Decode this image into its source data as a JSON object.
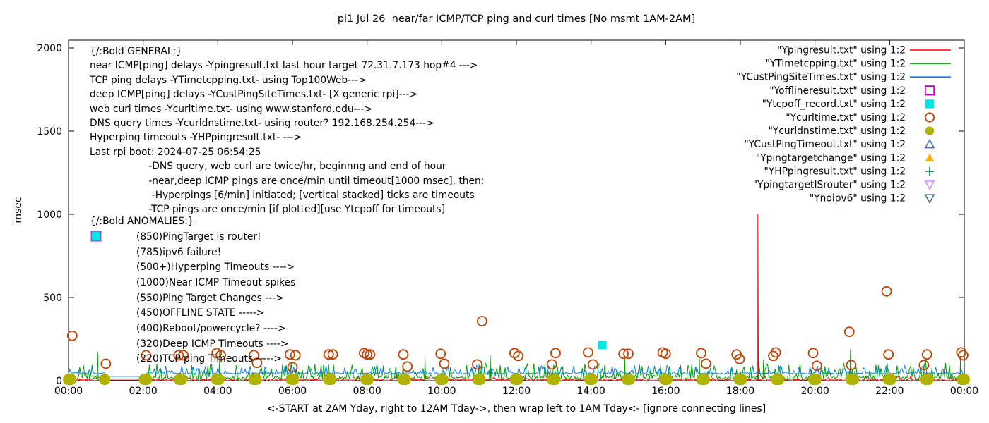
{
  "chart_data": {
    "type": "line",
    "title": "pi1 Jul 26  near/far ICMP/TCP ping and curl times [No msmt 1AM-2AM]",
    "ylabel": "msec",
    "xlabel": "<-START at 2AM Yday, right to 12AM Tday->, then wrap left to 1AM Tday<- [ignore connecting lines]",
    "ylim": [
      0,
      2050
    ],
    "yticks": [
      0,
      500,
      1000,
      1500,
      2000
    ],
    "x_hours": [
      0,
      24
    ],
    "xtick_labels": [
      "00:00",
      "02:00",
      "04:00",
      "06:00",
      "08:00",
      "10:00",
      "12:00",
      "14:00",
      "16:00",
      "18:00",
      "20:00",
      "22:00",
      "00:00"
    ],
    "grid": false,
    "legend_position": "top-right-inside",
    "measurement_gap_hours": [
      0.98,
      2.04
    ],
    "legend": [
      {
        "label": "\"Ypingresult.txt\" using 1:2",
        "color": "#ff0000",
        "sample": "line"
      },
      {
        "label": "\"YTimetcpping.txt\" using 1:2",
        "color": "#00a000",
        "sample": "line"
      },
      {
        "label": "\"YCustPingSiteTimes.txt\" using 1:2",
        "color": "#0080ff",
        "sample": "line"
      },
      {
        "label": "\"Yofflineresult.txt\" using 1:2",
        "color": "#c800c8",
        "sample": "open-square"
      },
      {
        "label": "\"Ytcpoff_record.txt\" using 1:2",
        "color": "#00e6e6",
        "sample": "filled-square"
      },
      {
        "label": "\"Ycurltime.txt\" using 1:2",
        "color": "#c04000",
        "sample": "open-circle"
      },
      {
        "label": "\"Ycurldnstime.txt\" using 1:2",
        "color": "#b0b400",
        "sample": "filled-circle"
      },
      {
        "label": "\"YCustPingTimeout.txt\" using 1:2",
        "color": "#4169e1",
        "sample": "open-triangle-up"
      },
      {
        "label": "\"Ypingtargetchange\" using 1:2",
        "color": "#ffaa00",
        "sample": "filled-triangle-up"
      },
      {
        "label": "\"YHPpingresult.txt\" using 1:2",
        "color": "#007850",
        "sample": "plus"
      },
      {
        "label": "\"YpingtargetISrouter\" using 1:2",
        "color": "#cc88ff",
        "sample": "open-triangle-down"
      },
      {
        "label": "\"Ynoipv6\" using 1:2",
        "color": "#3d6a80",
        "sample": "open-triangle-down"
      }
    ],
    "series": [
      {
        "name": "Ypingresult.txt",
        "color": "#ff0000",
        "kind": "noise-line",
        "seed": 11,
        "base": 3,
        "amp": 9,
        "spike_prob": 0.05,
        "spike_amp": 18,
        "gap_value": 4,
        "events": [
          {
            "x": 18.47,
            "y": 1000
          }
        ]
      },
      {
        "name": "YTimetcpping.txt",
        "color": "#00a000",
        "kind": "noise-line",
        "seed": 22,
        "base": 6,
        "amp": 22,
        "spike_prob": 0.3,
        "spike_amp": 80,
        "gap_value": 11,
        "events": [
          {
            "x": 0.78,
            "y": 175
          },
          {
            "x": 4.05,
            "y": 185
          },
          {
            "x": 9.55,
            "y": 140
          },
          {
            "x": 11.3,
            "y": 150
          },
          {
            "x": 14.9,
            "y": 150
          },
          {
            "x": 16.9,
            "y": 140
          },
          {
            "x": 18.62,
            "y": 128
          },
          {
            "x": 20.95,
            "y": 190
          },
          {
            "x": 23.9,
            "y": 150
          }
        ]
      },
      {
        "name": "YCustPingSiteTimes.txt",
        "color": "#0080ff",
        "kind": "noise-line",
        "seed": 33,
        "base": 40,
        "amp": 9,
        "spike_prob": 0.22,
        "spike_amp": 42,
        "gap_value": 26,
        "events": []
      },
      {
        "name": "Yofflineresult.txt",
        "color": "#c800c8",
        "kind": "points",
        "marker": "open-square",
        "size": 6.5,
        "points": []
      },
      {
        "name": "Ytcpoff_record.txt",
        "color": "#00e6e6",
        "kind": "points",
        "marker": "filled-square",
        "size": 6,
        "points": [
          [
            14.3,
            215
          ]
        ]
      },
      {
        "name": "Ycurltime.txt",
        "color": "#c04000",
        "kind": "points",
        "marker": "open-circle",
        "size": 6.5,
        "points": [
          [
            0.1,
            270
          ],
          [
            1.0,
            102
          ],
          [
            2.08,
            153
          ],
          [
            2.95,
            153
          ],
          [
            3.08,
            153
          ],
          [
            3.97,
            166
          ],
          [
            4.08,
            153
          ],
          [
            4.97,
            153
          ],
          [
            5.05,
            107
          ],
          [
            5.93,
            158
          ],
          [
            6.0,
            81
          ],
          [
            6.08,
            153
          ],
          [
            6.97,
            158
          ],
          [
            7.08,
            158
          ],
          [
            7.92,
            166
          ],
          [
            8.0,
            158
          ],
          [
            8.08,
            158
          ],
          [
            8.97,
            158
          ],
          [
            9.08,
            85
          ],
          [
            9.97,
            162
          ],
          [
            10.07,
            102
          ],
          [
            10.95,
            98
          ],
          [
            11.08,
            358
          ],
          [
            11.95,
            166
          ],
          [
            12.05,
            149
          ],
          [
            12.95,
            98
          ],
          [
            13.05,
            166
          ],
          [
            13.92,
            170
          ],
          [
            14.05,
            98
          ],
          [
            14.87,
            162
          ],
          [
            15.0,
            162
          ],
          [
            15.92,
            170
          ],
          [
            16.0,
            162
          ],
          [
            16.95,
            166
          ],
          [
            17.08,
            102
          ],
          [
            17.9,
            158
          ],
          [
            17.98,
            130
          ],
          [
            18.88,
            149
          ],
          [
            18.95,
            170
          ],
          [
            19.95,
            166
          ],
          [
            20.05,
            90
          ],
          [
            20.92,
            294
          ],
          [
            20.97,
            94
          ],
          [
            21.92,
            537
          ],
          [
            21.97,
            158
          ],
          [
            22.92,
            94
          ],
          [
            23.0,
            158
          ],
          [
            23.92,
            170
          ],
          [
            23.97,
            153
          ]
        ]
      },
      {
        "name": "Ycurldnstime.txt",
        "color": "#b0b400",
        "kind": "points",
        "marker": "filled-circle",
        "size": 8,
        "points": [
          [
            0.0,
            8
          ],
          [
            0.06,
            8
          ],
          [
            0.97,
            8
          ],
          [
            2.03,
            8
          ],
          [
            2.09,
            8
          ],
          [
            2.97,
            8
          ],
          [
            3.03,
            8
          ],
          [
            3.97,
            8
          ],
          [
            4.03,
            8
          ],
          [
            4.97,
            8
          ],
          [
            5.03,
            8
          ],
          [
            5.97,
            8
          ],
          [
            6.03,
            8
          ],
          [
            6.97,
            8
          ],
          [
            7.03,
            8
          ],
          [
            7.97,
            8
          ],
          [
            8.03,
            8
          ],
          [
            8.97,
            8
          ],
          [
            9.03,
            8
          ],
          [
            9.97,
            8
          ],
          [
            10.03,
            8
          ],
          [
            10.97,
            8
          ],
          [
            11.03,
            8
          ],
          [
            11.97,
            8
          ],
          [
            12.03,
            8
          ],
          [
            12.97,
            8
          ],
          [
            13.03,
            8
          ],
          [
            13.97,
            8
          ],
          [
            14.03,
            8
          ],
          [
            14.97,
            8
          ],
          [
            15.03,
            8
          ],
          [
            15.97,
            8
          ],
          [
            16.03,
            8
          ],
          [
            16.97,
            8
          ],
          [
            17.03,
            8
          ],
          [
            17.97,
            8
          ],
          [
            18.03,
            8
          ],
          [
            18.97,
            8
          ],
          [
            19.03,
            8
          ],
          [
            19.97,
            8
          ],
          [
            20.03,
            8
          ],
          [
            20.97,
            8
          ],
          [
            21.03,
            8
          ],
          [
            21.97,
            8
          ],
          [
            22.03,
            8
          ],
          [
            22.97,
            8
          ],
          [
            23.03,
            8
          ],
          [
            23.94,
            8
          ],
          [
            24.0,
            8
          ]
        ]
      },
      {
        "name": "YCustPingTimeout.txt",
        "color": "#4169e1",
        "kind": "points",
        "marker": "open-triangle-up",
        "size": 7,
        "points": []
      },
      {
        "name": "Ypingtargetchange",
        "color": "#ffaa00",
        "kind": "points",
        "marker": "filled-triangle-up",
        "size": 7,
        "points": []
      },
      {
        "name": "YHPpingresult.txt",
        "color": "#007850",
        "kind": "points",
        "marker": "plus",
        "size": 7,
        "points": []
      },
      {
        "name": "YpingtargetISrouter",
        "color": "#cc88ff",
        "kind": "points",
        "marker": "open-triangle-down",
        "size": 7,
        "points": []
      },
      {
        "name": "Ynoipv6",
        "color": "#3d6a80",
        "kind": "points",
        "marker": "open-triangle-down",
        "size": 7,
        "points": []
      }
    ],
    "annotations": {
      "general": [
        "{/:Bold GENERAL:}",
        "near ICMP[ping] delays -Ypingresult.txt last hour target 72.31.7.173 hop#4 --->",
        "TCP ping delays -YTimetcpping.txt- using Top100Web--->",
        "deep ICMP[ping] delays -YCustPingSiteTimes.txt- [X generic rpi]--->",
        "web curl times -Ycurltime.txt- using www.stanford.edu--->",
        "DNS query times -Ycurldnstime.txt- using router? 192.168.254.254--->",
        "Hyperping timeouts -YHPpingresult.txt- --->",
        "Last rpi boot: 2024-07-25 06:54:25",
        "                   -DNS query, web curl are twice/hr, beginnng and end of hour",
        "                   -near,deep ICMP pings are once/min until timeout[1000 msec], then:",
        "                    -Hyperpings [6/min] initiated; [vertical stacked] ticks are timeouts",
        "                   -TCP pings are once/min [if plotted][use Ytcpoff for timeouts]"
      ],
      "anomalies_title": "{/:Bold ANOMALIES:}",
      "anomalies": [
        {
          "marker": "open-triangle-down",
          "color": "#cc88ff",
          "text": "(850)PingTarget is router!"
        },
        {
          "marker": "open-triangle-down",
          "color": "#3d6a80",
          "text": "(785)ipv6 failure!"
        },
        {
          "marker": "plus",
          "color": "#007850",
          "text": "(500+)Hyperping Timeouts ---->"
        },
        {
          "marker": "none",
          "color": "",
          "text": "(1000)Near ICMP Timeout spikes"
        },
        {
          "marker": "filled-triangle-up",
          "color": "#ffaa00",
          "text": "(550)Ping Target Changes --->"
        },
        {
          "marker": "open-square",
          "color": "#c800c8",
          "text": "(450)OFFLINE STATE ----->"
        },
        {
          "marker": "none",
          "color": "",
          "text": "(400)Reboot/powercycle? ---->"
        },
        {
          "marker": "open-triangle-up",
          "color": "#4169e1",
          "text": "(320)Deep ICMP Timeouts ---->"
        },
        {
          "marker": "filled-square",
          "color": "#00e6e6",
          "text": "(220)TCP ping Timeouts ----->"
        }
      ]
    }
  }
}
